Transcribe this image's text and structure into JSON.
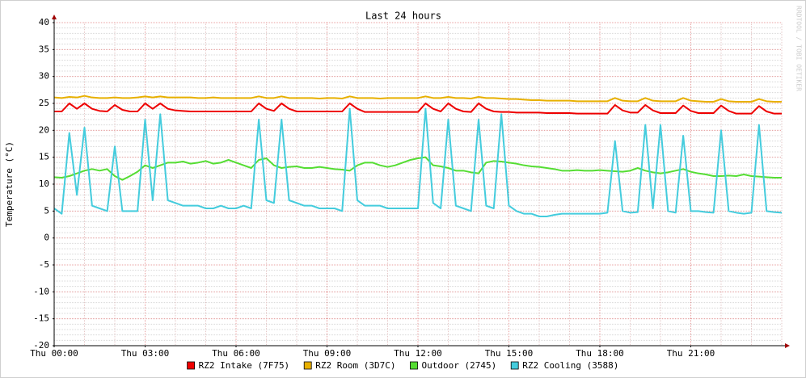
{
  "chart_data": {
    "type": "line",
    "title": "Last 24 hours",
    "y_label": "Temperature (°C)",
    "watermark": "RRDTOOL / TOBI OETIKER",
    "grid": true,
    "legend": "bottom",
    "xlim": [
      0,
      24
    ],
    "xticks": [
      {
        "value": 0,
        "label": "Thu 00:00"
      },
      {
        "value": 3,
        "label": "Thu 03:00"
      },
      {
        "value": 6,
        "label": "Thu 06:00"
      },
      {
        "value": 9,
        "label": "Thu 09:00"
      },
      {
        "value": 12,
        "label": "Thu 12:00"
      },
      {
        "value": 15,
        "label": "Thu 15:00"
      },
      {
        "value": 18,
        "label": "Thu 18:00"
      },
      {
        "value": 21,
        "label": "Thu 21:00"
      }
    ],
    "ylim": [
      -20,
      40
    ],
    "yticks": [
      -20,
      -15,
      -10,
      -5,
      0,
      5,
      10,
      15,
      20,
      25,
      30,
      35,
      40
    ],
    "x": [
      0,
      0.25,
      0.5,
      0.75,
      1,
      1.25,
      1.5,
      1.75,
      2,
      2.25,
      2.5,
      2.75,
      3,
      3.25,
      3.5,
      3.75,
      4,
      4.25,
      4.5,
      4.75,
      5,
      5.25,
      5.5,
      5.75,
      6,
      6.25,
      6.5,
      6.75,
      7,
      7.25,
      7.5,
      7.75,
      8,
      8.25,
      8.5,
      8.75,
      9,
      9.25,
      9.5,
      9.75,
      10,
      10.25,
      10.5,
      10.75,
      11,
      11.25,
      11.5,
      11.75,
      12,
      12.25,
      12.5,
      12.75,
      13,
      13.25,
      13.5,
      13.75,
      14,
      14.25,
      14.5,
      14.75,
      15,
      15.25,
      15.5,
      15.75,
      16,
      16.25,
      16.5,
      16.75,
      17,
      17.25,
      17.5,
      17.75,
      18,
      18.25,
      18.5,
      18.75,
      19,
      19.25,
      19.5,
      19.75,
      20,
      20.25,
      20.5,
      20.75,
      21,
      21.25,
      21.5,
      21.75,
      22,
      22.25,
      22.5,
      22.75,
      23,
      23.25,
      23.5,
      23.75,
      24
    ],
    "series": [
      {
        "name": "RZ2 Intake (7F75)",
        "color": "#ee0000",
        "values": [
          23.5,
          23.5,
          25,
          24,
          25,
          24,
          23.6,
          23.5,
          24.7,
          23.8,
          23.5,
          23.5,
          25,
          24,
          25,
          24,
          23.7,
          23.6,
          23.5,
          23.5,
          23.5,
          23.5,
          23.5,
          23.5,
          23.5,
          23.5,
          23.5,
          25,
          24,
          23.6,
          25,
          24,
          23.5,
          23.5,
          23.5,
          23.5,
          23.5,
          23.5,
          23.5,
          25,
          24,
          23.4,
          23.4,
          23.4,
          23.4,
          23.4,
          23.4,
          23.4,
          23.4,
          25,
          24,
          23.5,
          25,
          24,
          23.5,
          23.4,
          25,
          24,
          23.5,
          23.4,
          23.4,
          23.3,
          23.3,
          23.3,
          23.3,
          23.2,
          23.2,
          23.2,
          23.2,
          23.1,
          23.1,
          23.1,
          23.1,
          23.1,
          24.7,
          23.7,
          23.3,
          23.3,
          24.7,
          23.7,
          23.2,
          23.2,
          23.2,
          24.6,
          23.6,
          23.2,
          23.2,
          23.2,
          24.6,
          23.6,
          23.1,
          23.1,
          23.1,
          24.5,
          23.5,
          23.1,
          23.1
        ]
      },
      {
        "name": "RZ2 Room (3D7C)",
        "color": "#e8b000",
        "values": [
          26.1,
          26,
          26.2,
          26.1,
          26.4,
          26.1,
          26,
          26,
          26.1,
          26,
          26,
          26.1,
          26.3,
          26.1,
          26.3,
          26.1,
          26.1,
          26.1,
          26.1,
          26,
          26,
          26.1,
          26,
          26,
          26,
          26,
          26,
          26.3,
          26,
          26,
          26.3,
          26,
          26,
          26,
          26,
          25.9,
          26,
          26,
          25.9,
          26.3,
          26,
          26,
          26,
          25.9,
          26,
          26,
          26,
          26,
          26,
          26.3,
          26,
          26,
          26.2,
          26,
          26,
          25.9,
          26.2,
          26,
          26,
          25.9,
          25.8,
          25.8,
          25.7,
          25.6,
          25.6,
          25.5,
          25.5,
          25.5,
          25.5,
          25.4,
          25.4,
          25.4,
          25.4,
          25.4,
          26,
          25.5,
          25.4,
          25.4,
          26,
          25.5,
          25.4,
          25.4,
          25.4,
          26,
          25.5,
          25.4,
          25.3,
          25.3,
          25.8,
          25.4,
          25.3,
          25.3,
          25.3,
          25.8,
          25.4,
          25.3,
          25.3
        ]
      },
      {
        "name": "Outdoor (2745)",
        "color": "#55dd33",
        "values": [
          11.3,
          11.2,
          11.5,
          12,
          12.5,
          12.8,
          12.5,
          12.8,
          11.5,
          10.8,
          11.5,
          12.3,
          13.5,
          13,
          13.5,
          14,
          14,
          14.2,
          13.8,
          14,
          14.3,
          13.8,
          14,
          14.5,
          14,
          13.5,
          13,
          14.5,
          14.8,
          13.5,
          13,
          13.2,
          13.3,
          13,
          13,
          13.2,
          13,
          12.8,
          12.7,
          12.5,
          13.5,
          14,
          14,
          13.5,
          13.2,
          13.5,
          14,
          14.5,
          14.8,
          15,
          13.5,
          13.3,
          13,
          12.5,
          12.5,
          12.2,
          12,
          14,
          14.3,
          14.2,
          14,
          13.8,
          13.5,
          13.3,
          13.2,
          13,
          12.8,
          12.5,
          12.5,
          12.6,
          12.5,
          12.5,
          12.6,
          12.5,
          12.4,
          12.3,
          12.5,
          13,
          12.5,
          12.2,
          12,
          12.2,
          12.5,
          12.8,
          12.3,
          12,
          11.8,
          11.5,
          11.5,
          11.6,
          11.5,
          11.8,
          11.5,
          11.4,
          11.3,
          11.2,
          11.2
        ]
      },
      {
        "name": "RZ2 Cooling (3588)",
        "color": "#44ccdd",
        "values": [
          5.5,
          4.5,
          19.5,
          8,
          20.5,
          6,
          5.5,
          5,
          17,
          5,
          5,
          5,
          22,
          7,
          23,
          7,
          6.5,
          6,
          6,
          6,
          5.5,
          5.5,
          6,
          5.5,
          5.5,
          6,
          5.5,
          22,
          7,
          6.5,
          22,
          7,
          6.5,
          6,
          6,
          5.5,
          5.5,
          5.5,
          5,
          24,
          7,
          6,
          6,
          6,
          5.5,
          5.5,
          5.5,
          5.5,
          5.5,
          24,
          6.5,
          5.5,
          22,
          6,
          5.5,
          5,
          22,
          6,
          5.5,
          23,
          6,
          5,
          4.5,
          4.5,
          4,
          4,
          4.3,
          4.5,
          4.5,
          4.5,
          4.5,
          4.5,
          4.5,
          4.7,
          18,
          5,
          4.7,
          4.8,
          21,
          5.5,
          21,
          5,
          4.7,
          19,
          5,
          5,
          4.8,
          4.7,
          20,
          5,
          4.7,
          4.5,
          4.7,
          21,
          5,
          4.8,
          4.7
        ]
      }
    ]
  }
}
